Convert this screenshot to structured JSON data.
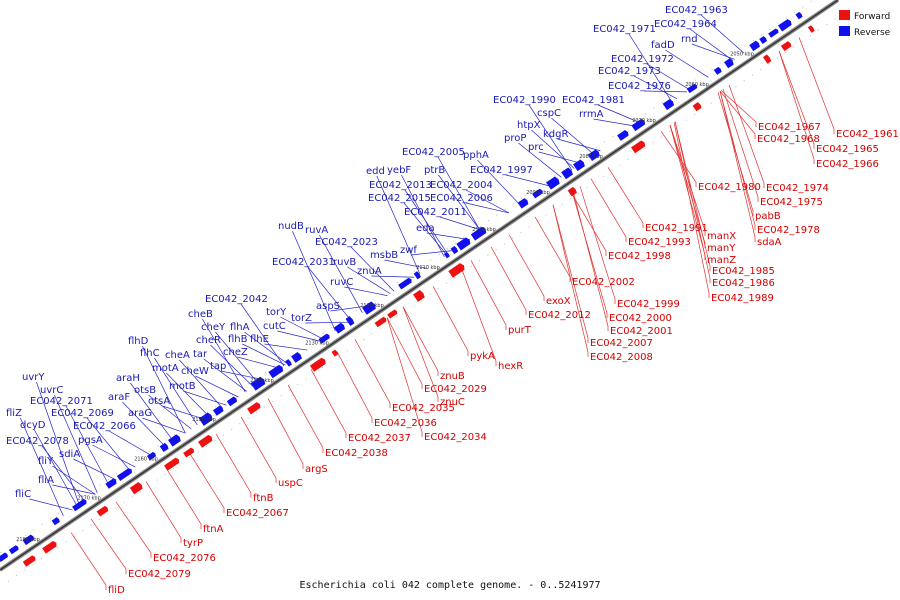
{
  "title": "Escherichia coli 042 complete genome. - 0..5241977",
  "legend": [
    {
      "label": "Forward",
      "color": "#ee1111"
    },
    {
      "label": "Reverse",
      "color": "#1111ee"
    }
  ],
  "colors": {
    "forward": "#ee1111",
    "reverse": "#1111ee",
    "forward_line": "#e23030",
    "reverse_line": "#2626c8",
    "axis": "#555555"
  },
  "kbp_marks": [
    "2050 kbp",
    "2060 kbp",
    "2070 kbp",
    "2080 kbp",
    "2090 kbp",
    "2100 kbp",
    "2110 kbp",
    "2120 kbp",
    "2130 kbp",
    "2140 kbp",
    "2150 kbp",
    "2160 kbp",
    "2170 kbp",
    "2180 kbp"
  ],
  "reverse_labels": [
    "EC042_1963",
    "EC042_1971",
    "EC042_1964",
    "fadD",
    "rnd",
    "EC042_1972",
    "EC042_1973",
    "EC042_1976",
    "EC042_1990",
    "EC042_1981",
    "cspC",
    "rrmA",
    "htpX",
    "kdgR",
    "proP",
    "prc",
    "pphA",
    "EC042_2005",
    "EC042_1997",
    "edd",
    "yebF",
    "ptrB",
    "EC042_2013",
    "EC042_2004",
    "EC042_2015",
    "EC042_2006",
    "EC042_2011",
    "nudB",
    "ruvA",
    "eda",
    "EC042_2023",
    "EC042_2031",
    "ruvB",
    "msbB",
    "zwf",
    "ruvC",
    "znuA",
    "EC042_2042",
    "aspS",
    "torY",
    "cheB",
    "cutC",
    "torZ",
    "cheY",
    "flhA",
    "cheR",
    "flhB",
    "flhE",
    "flhD",
    "cheZ",
    "flhC",
    "cheA",
    "tar",
    "tap",
    "motA",
    "cheW",
    "araH",
    "motB",
    "uvrY",
    "araF",
    "otsB",
    "uvrC",
    "otsA",
    "EC042_2071",
    "araG",
    "fliZ",
    "EC042_2069",
    "dcyD",
    "EC042_2066",
    "EC042_2078",
    "pgsA",
    "sdiA",
    "fliY",
    "fliA",
    "fliC"
  ],
  "forward_labels": [
    "EC042_1967",
    "EC042_1961",
    "EC042_1968",
    "EC042_1965",
    "EC042_1966",
    "EC042_1980",
    "EC042_1974",
    "EC042_1975",
    "pabB",
    "EC042_1978",
    "sdaA",
    "EC042_1991",
    "manX",
    "EC042_1993",
    "manY",
    "EC042_1998",
    "manZ",
    "EC042_1985",
    "EC042_1986",
    "EC042_2002",
    "EC042_1989",
    "exoX",
    "EC042_1999",
    "EC042_2012",
    "EC042_2000",
    "purT",
    "EC042_2001",
    "EC042_2007",
    "EC042_2008",
    "pykA",
    "hexR",
    "znuB",
    "EC042_2029",
    "znuC",
    "EC042_2035",
    "EC042_2036",
    "EC042_2037",
    "EC042_2034",
    "EC042_2038",
    "argS",
    "uspC",
    "ftnB",
    "EC042_2067",
    "ftnA",
    "tyrP",
    "EC042_2076",
    "EC042_2079",
    "fliD"
  ]
}
